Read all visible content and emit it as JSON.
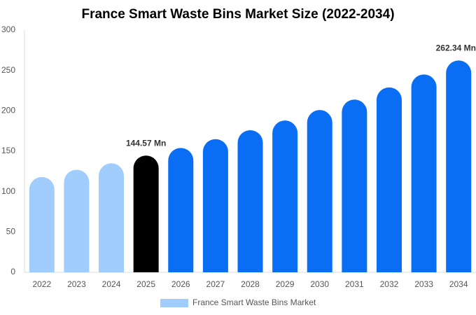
{
  "chart_data": {
    "type": "bar",
    "title": "France Smart Waste Bins Market Size (2022-2034)",
    "categories": [
      "2022",
      "2023",
      "2024",
      "2025",
      "2026",
      "2027",
      "2028",
      "2029",
      "2030",
      "2031",
      "2032",
      "2033",
      "2034"
    ],
    "series": [
      {
        "name": "France Smart Waste Bins Market",
        "color": "#a0cdfc",
        "colors": [
          "#a0cdfc",
          "#a0cdfc",
          "#a0cdfc",
          "#000000",
          "#0a6ef5",
          "#0a6ef5",
          "#0a6ef5",
          "#0a6ef5",
          "#0a6ef5",
          "#0a6ef5",
          "#0a6ef5",
          "#0a6ef5",
          "#0a6ef5"
        ],
        "values": [
          118,
          127,
          135,
          144.57,
          154,
          165,
          176,
          188,
          201,
          214,
          229,
          245,
          262.34
        ],
        "value_labels": [
          null,
          null,
          null,
          "144.57 Mn",
          null,
          null,
          null,
          null,
          null,
          null,
          null,
          null,
          "262.34 Mn"
        ]
      }
    ],
    "ylim": [
      0,
      300
    ],
    "yticks": [
      0,
      50,
      100,
      150,
      200,
      250,
      300
    ],
    "grid": false
  }
}
